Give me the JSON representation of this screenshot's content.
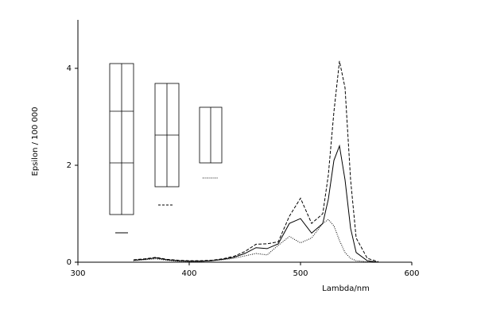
{
  "chart_data": {
    "type": "line",
    "x_label": "Lambda/nm",
    "y_label": "Epsilon / 100 000",
    "xlim": [
      300,
      600
    ],
    "xticks": [
      300,
      400,
      500,
      600
    ],
    "ylim": [
      0,
      5
    ],
    "yticks": [
      0,
      2,
      4
    ],
    "x": [
      350,
      360,
      370,
      380,
      390,
      400,
      410,
      420,
      430,
      440,
      450,
      460,
      470,
      480,
      490,
      500,
      510,
      520,
      525,
      530,
      535,
      540,
      545,
      550,
      560,
      570
    ],
    "series": [
      {
        "color": "#000000",
        "dash": "4,2",
        "values": [
          0.05,
          0.07,
          0.1,
          0.06,
          0.04,
          0.03,
          0.03,
          0.04,
          0.07,
          0.12,
          0.22,
          0.37,
          0.38,
          0.42,
          0.95,
          1.32,
          0.8,
          1.0,
          1.8,
          3.1,
          4.15,
          3.6,
          1.7,
          0.5,
          0.08,
          0.01
        ]
      },
      {
        "color": "#000000",
        "dash": "none",
        "values": [
          0.04,
          0.06,
          0.09,
          0.05,
          0.03,
          0.02,
          0.02,
          0.03,
          0.06,
          0.1,
          0.18,
          0.3,
          0.28,
          0.38,
          0.8,
          0.9,
          0.6,
          0.8,
          1.3,
          2.1,
          2.4,
          1.7,
          0.7,
          0.2,
          0.03,
          0
        ]
      },
      {
        "color": "#000000",
        "dash": "1,1.5",
        "values": [
          0.03,
          0.05,
          0.07,
          0.04,
          0.02,
          0.02,
          0.02,
          0.03,
          0.05,
          0.08,
          0.13,
          0.18,
          0.15,
          0.35,
          0.53,
          0.4,
          0.5,
          0.8,
          0.88,
          0.75,
          0.45,
          0.2,
          0.08,
          0.03,
          0.01,
          0
        ]
      }
    ]
  }
}
